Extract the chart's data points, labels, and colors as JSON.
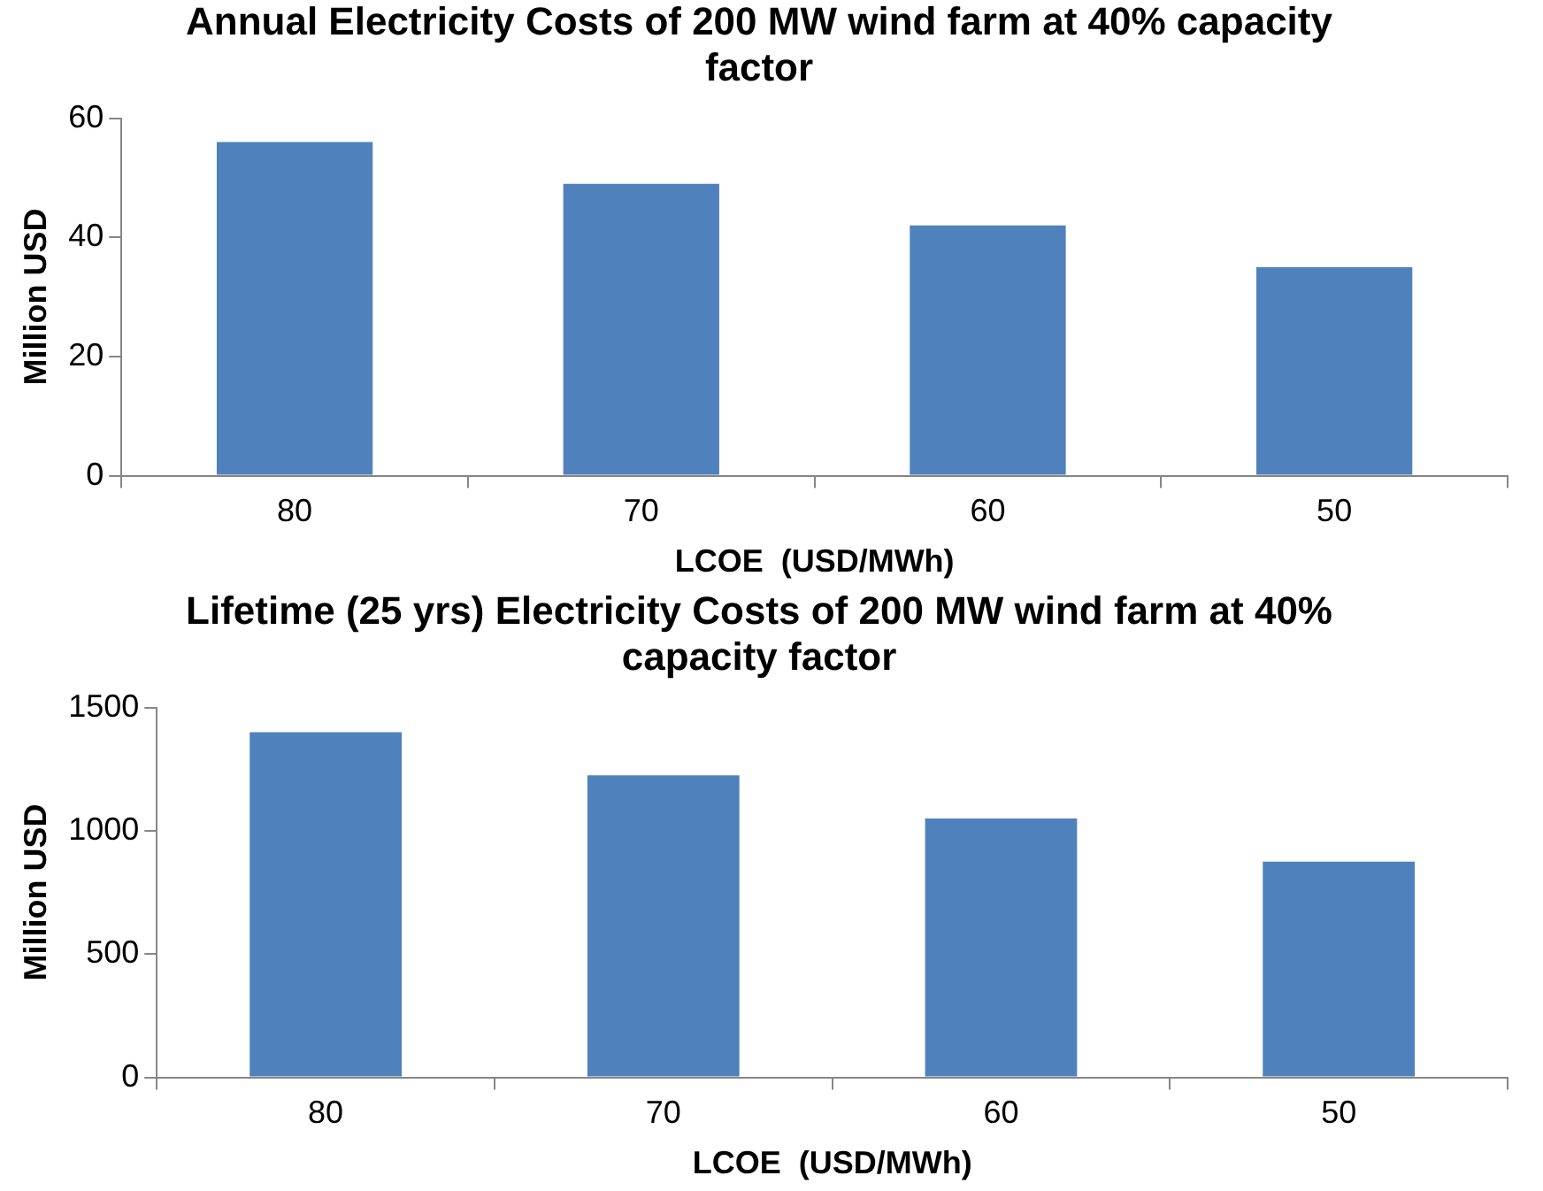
{
  "chart_data": [
    {
      "type": "bar",
      "title": "Annual Electricity Costs of 200 MW wind farm at 40% capacity factor",
      "xlabel": "LCOE  (USD/MWh)",
      "ylabel": "Million USD",
      "categories": [
        "80",
        "70",
        "60",
        "50"
      ],
      "values": [
        56,
        49,
        42,
        35
      ],
      "color": "#4f81bd",
      "ylim": [
        0,
        60
      ],
      "yticks": [
        0,
        20,
        40,
        60
      ]
    },
    {
      "type": "bar",
      "title": "Lifetime (25 yrs) Electricity Costs of 200 MW wind farm at 40% capacity factor",
      "xlabel": "LCOE  (USD/MWh)",
      "ylabel": "Million USD",
      "categories": [
        "80",
        "70",
        "60",
        "50"
      ],
      "values": [
        1400,
        1225,
        1050,
        875
      ],
      "color": "#4f81bd",
      "ylim": [
        0,
        1500
      ],
      "yticks": [
        0,
        500,
        1000,
        1500
      ]
    }
  ]
}
